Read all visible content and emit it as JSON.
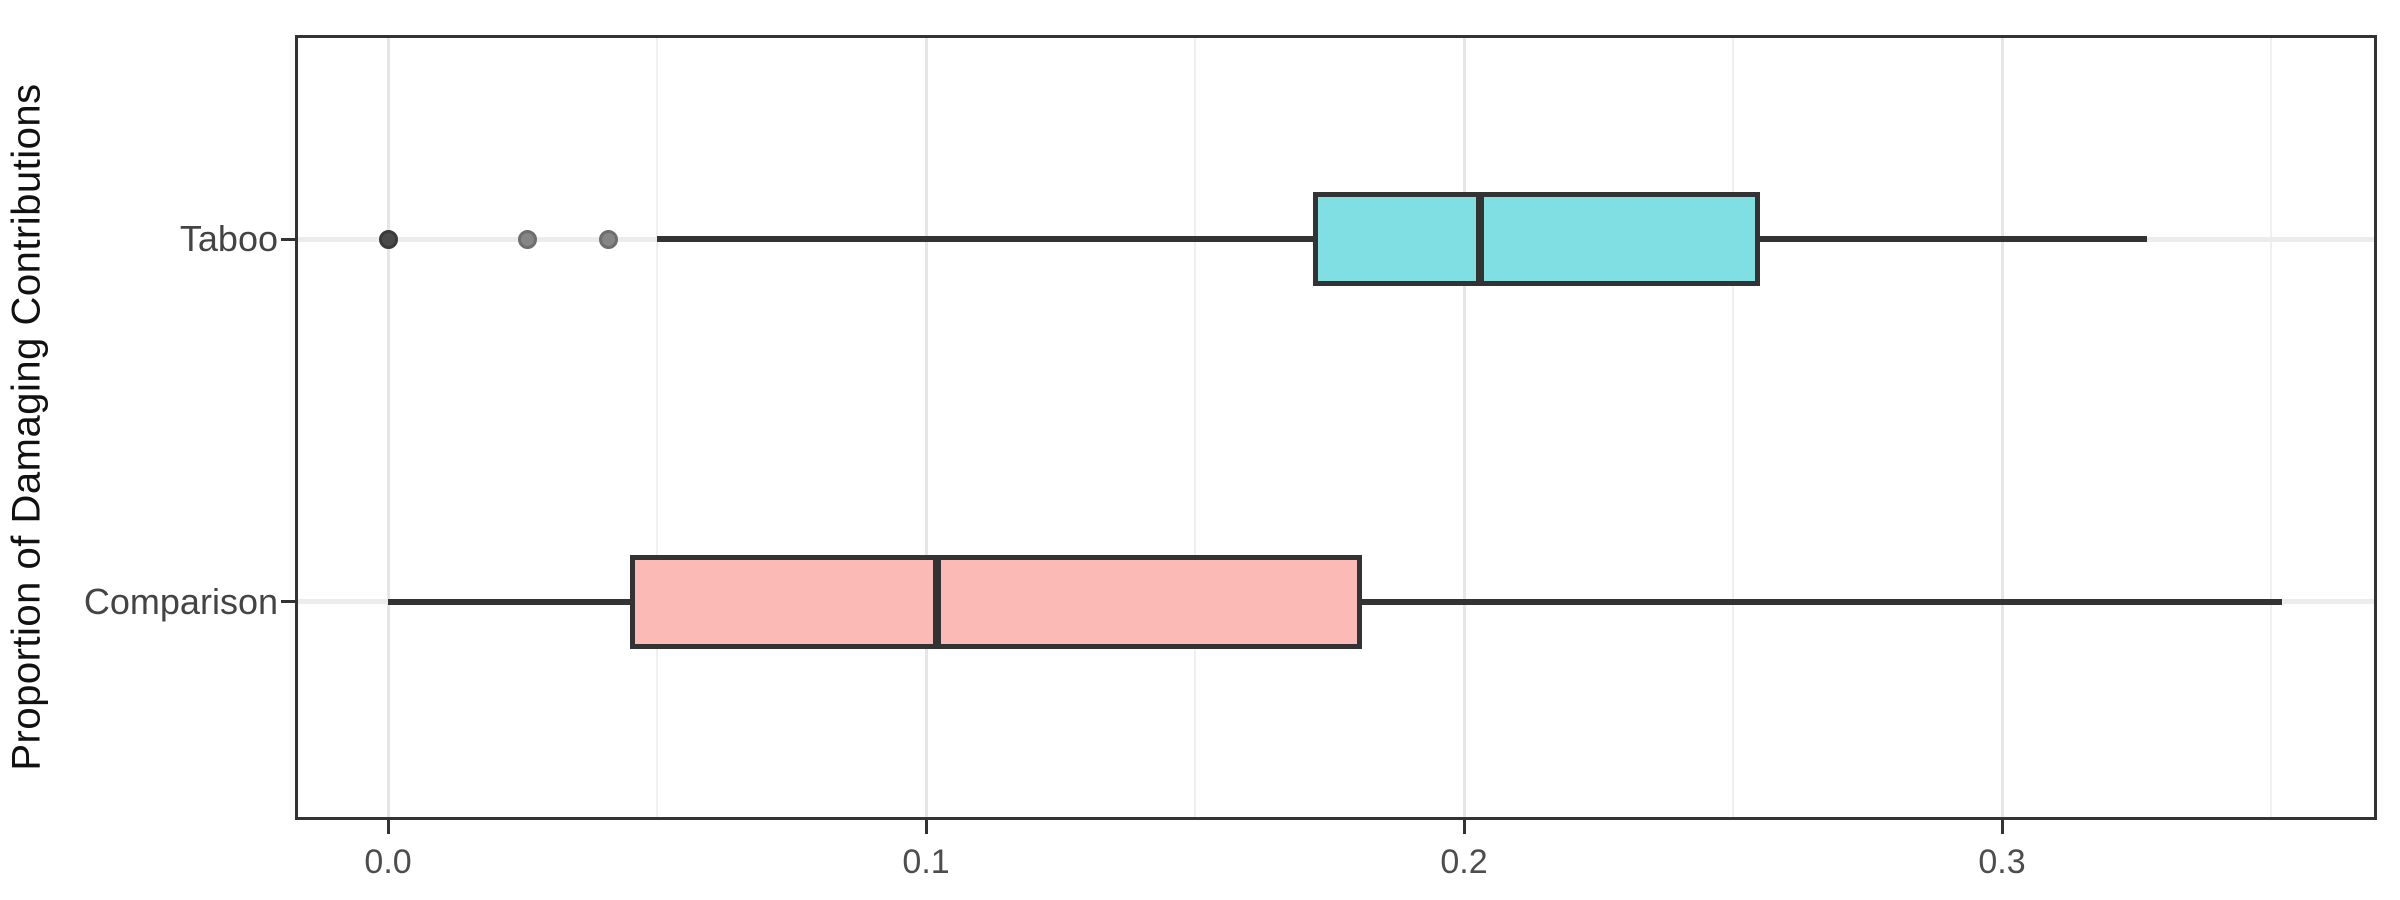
{
  "figure": {
    "background": "#FFFFFF"
  },
  "chart_data": {
    "type": "boxplot",
    "orientation": "horizontal",
    "title": "",
    "xlabel": "",
    "ylabel": "Proportion of Damaging Contributions",
    "xlim": [
      -0.0173,
      0.3697
    ],
    "x_major_ticks": [
      0.0,
      0.1,
      0.2,
      0.3
    ],
    "x_tick_labels": [
      "0.0",
      "0.1",
      "0.2",
      "0.3"
    ],
    "x_minor_gridlines": [
      0.05,
      0.15,
      0.25,
      0.35
    ],
    "grid": "major+minor vertical, one light horizontal line per category",
    "legend": "none",
    "categories": [
      "Taboo",
      "Comparison"
    ],
    "series": [
      {
        "name": "Taboo",
        "whisker_min": 0.05,
        "q1": 0.172,
        "median": 0.203,
        "q3": 0.255,
        "whisker_max": 0.327,
        "outliers": [
          0.0,
          0.026,
          0.041
        ],
        "outlier_colors": [
          "#4A4A4A",
          "#858585",
          "#858585"
        ],
        "outlier_ring_colors": [
          "#3A3A3A",
          "#6E6E6E",
          "#6E6E6E"
        ],
        "fill": "#80DFE2"
      },
      {
        "name": "Comparison",
        "whisker_min": 0.0,
        "q1": 0.045,
        "median": 0.102,
        "q3": 0.181,
        "whisker_max": 0.352,
        "outliers": [],
        "outlier_colors": [],
        "outlier_ring_colors": [],
        "fill": "#FCBAB6"
      }
    ],
    "colors": {
      "stroke": "#333333",
      "panel_border": "#333333",
      "grid_major": "#E6E6E6",
      "grid_minor": "#EFEFEF",
      "row_grid": "#ECECEC",
      "axis_text": "#4D4D4D",
      "category_text": "#444444",
      "title_text": "#111111"
    }
  }
}
